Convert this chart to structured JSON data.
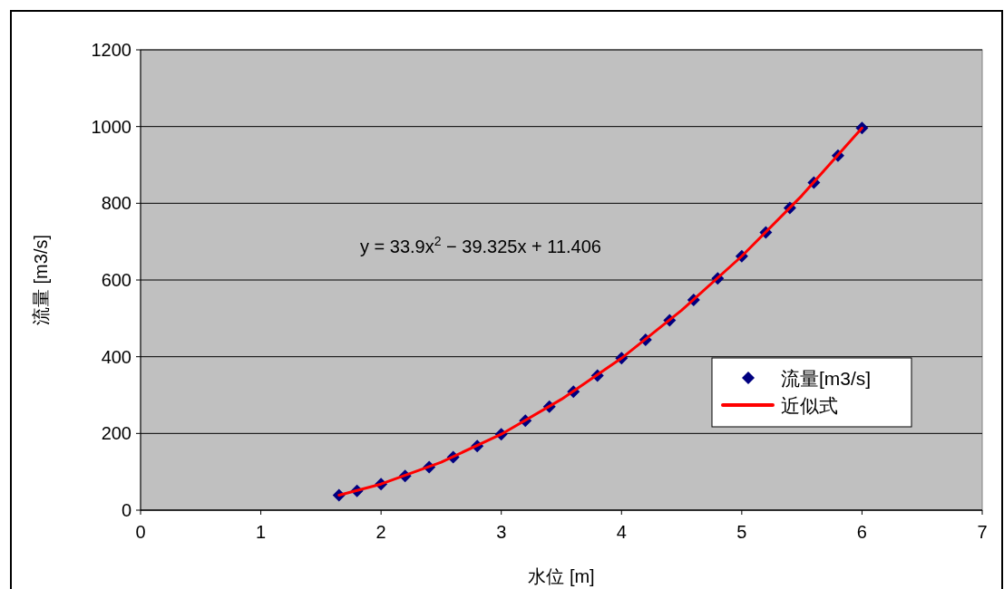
{
  "chart_data": {
    "type": "scatter",
    "xlabel": "水位 [m]",
    "ylabel": "流量 [m3/s]",
    "annotations": [
      "y = 33.9x$^{2}$ − 39.325x + 11.406"
    ],
    "xlim": [
      0,
      7
    ],
    "xticks": [
      0,
      1,
      2,
      3,
      4,
      5,
      6,
      7
    ],
    "ylim": [
      0,
      1200
    ],
    "yticks": [
      0,
      200,
      400,
      600,
      800,
      1000,
      1200
    ],
    "grid": "y",
    "legend": "right",
    "marker": "diamond",
    "series": [
      {
        "name": "流量[m3/s]",
        "color": "#000080",
        "x": [
          1.65,
          1.8,
          2.0,
          2.2,
          2.4,
          2.6,
          2.8,
          3.0,
          3.2,
          3.4,
          3.6,
          3.8,
          4.0,
          4.2,
          4.4,
          4.6,
          4.8,
          5.0,
          5.2,
          5.4,
          5.6,
          5.8,
          6.0
        ],
        "values": [
          39,
          50,
          68,
          89,
          112,
          138,
          167,
          198,
          233,
          270,
          309,
          351,
          396,
          444,
          495,
          548,
          604,
          662,
          724,
          788,
          854,
          924,
          996
        ]
      },
      {
        "name": "近似式",
        "type": "line",
        "color": "#ff0000",
        "marker": "none",
        "x": [
          1.65,
          2.0,
          2.5,
          3.0,
          3.5,
          4.0,
          4.5,
          5.0,
          5.5,
          6.0
        ],
        "values": [
          39,
          68,
          125,
          198,
          289,
          396,
          521,
          662,
          820,
          996
        ]
      }
    ]
  }
}
